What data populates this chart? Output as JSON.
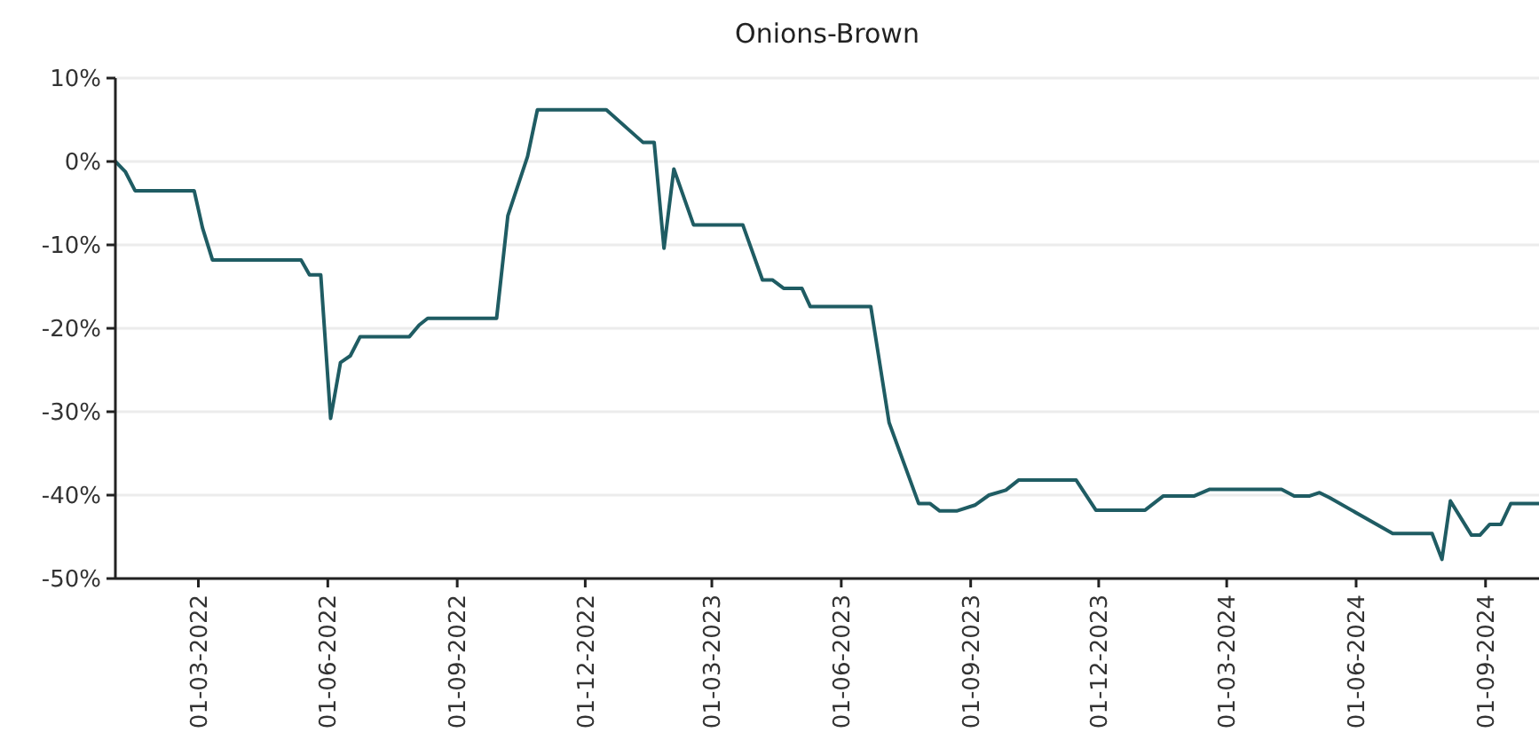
{
  "chart_data": {
    "type": "line",
    "title": "Onions-Brown",
    "x": [
      "2022-01-01",
      "2022-01-08",
      "2022-01-15",
      "2022-02-26",
      "2022-03-04",
      "2022-03-11",
      "2022-05-13",
      "2022-05-19",
      "2022-05-27",
      "2022-06-03",
      "2022-06-10",
      "2022-06-17",
      "2022-06-24",
      "2022-07-29",
      "2022-08-05",
      "2022-08-11",
      "2022-09-29",
      "2022-10-07",
      "2022-10-21",
      "2022-10-28",
      "2022-12-16",
      "2023-01-11",
      "2023-01-19",
      "2023-01-26",
      "2023-02-02",
      "2023-02-16",
      "2023-03-23",
      "2023-04-06",
      "2023-04-13",
      "2023-04-21",
      "2023-05-04",
      "2023-05-10",
      "2023-06-22",
      "2023-07-05",
      "2023-07-26",
      "2023-08-03",
      "2023-08-10",
      "2023-08-22",
      "2023-09-04",
      "2023-09-14",
      "2023-09-26",
      "2023-10-05",
      "2023-11-15",
      "2023-11-29",
      "2024-01-03",
      "2024-01-16",
      "2024-02-07",
      "2024-02-18",
      "2024-04-09",
      "2024-04-18",
      "2024-04-29",
      "2024-05-06",
      "2024-05-13",
      "2024-06-27",
      "2024-07-25",
      "2024-08-01",
      "2024-08-07",
      "2024-08-22",
      "2024-08-28",
      "2024-09-04",
      "2024-09-12",
      "2024-09-19",
      "2024-10-09"
    ],
    "series": [
      {
        "color": "#1f5c63",
        "values": [
          0,
          -1.2,
          -3.5,
          -3.5,
          -8,
          -11.8,
          -11.8,
          -13.6,
          -13.6,
          -30.8,
          -24.1,
          -23.3,
          -21,
          -21,
          -19.6,
          -18.8,
          -18.8,
          -6.5,
          0.6,
          6.2,
          6.2,
          2.3,
          2.3,
          -10.4,
          -0.9,
          -7.6,
          -7.6,
          -14.2,
          -14.2,
          -15.2,
          -15.2,
          -17.4,
          -17.4,
          -31.3,
          -41,
          -41,
          -41.9,
          -41.9,
          -41.2,
          -40,
          -39.4,
          -38.2,
          -38.2,
          -41.8,
          -41.8,
          -40.1,
          -40.1,
          -39.3,
          -39.3,
          -40.1,
          -40.1,
          -39.7,
          -40.3,
          -44.6,
          -44.6,
          -47.7,
          -40.7,
          -44.8,
          -44.8,
          -43.5,
          -43.5,
          -41,
          -41
        ]
      }
    ],
    "xlim": [
      "2022-01-01",
      "2024-10-09"
    ],
    "xticks": [
      {
        "value": "2022-03-01",
        "label": "01-03-2022"
      },
      {
        "value": "2022-06-01",
        "label": "01-06-2022"
      },
      {
        "value": "2022-09-01",
        "label": "01-09-2022"
      },
      {
        "value": "2022-12-01",
        "label": "01-12-2022"
      },
      {
        "value": "2023-03-01",
        "label": "01-03-2023"
      },
      {
        "value": "2023-06-01",
        "label": "01-06-2023"
      },
      {
        "value": "2023-09-01",
        "label": "01-09-2023"
      },
      {
        "value": "2023-12-01",
        "label": "01-12-2023"
      },
      {
        "value": "2024-03-01",
        "label": "01-03-2024"
      },
      {
        "value": "2024-06-01",
        "label": "01-06-2024"
      },
      {
        "value": "2024-09-01",
        "label": "01-09-2024"
      }
    ],
    "ylim": [
      -50,
      10
    ],
    "yticks": [
      {
        "value": 10,
        "label": "10%"
      },
      {
        "value": 0,
        "label": "0%"
      },
      {
        "value": -10,
        "label": "-10%"
      },
      {
        "value": -20,
        "label": "-20%"
      },
      {
        "value": -30,
        "label": "-30%"
      },
      {
        "value": -40,
        "label": "-40%"
      },
      {
        "value": -50,
        "label": "-50%"
      }
    ],
    "grid": "y",
    "marker": "none",
    "line_style": "solid"
  }
}
